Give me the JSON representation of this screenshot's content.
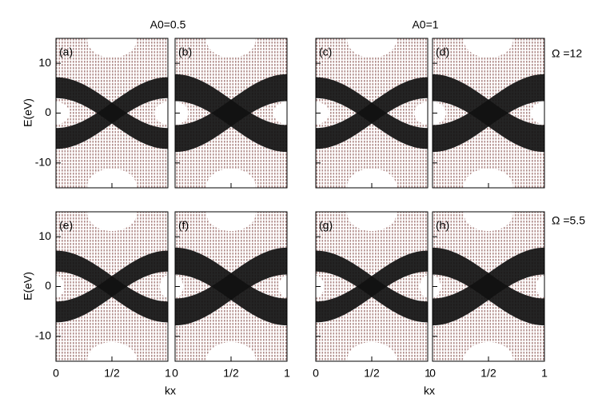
{
  "column_headers": [
    "A0=0.5",
    "A0=1"
  ],
  "row_labels": [
    "Ω =12",
    "Ω =5.5"
  ],
  "axis_labels": {
    "x": "kx",
    "y": "E(eV)"
  },
  "chart_data": [
    {
      "type": "band",
      "panel": "(a)",
      "row": 0,
      "col": 0,
      "xlim": [
        0,
        1
      ],
      "ylim": [
        -15,
        15
      ],
      "xticks": [
        0,
        0.5,
        1
      ],
      "yticks": [
        -10,
        0,
        10
      ],
      "xtick_labels": false,
      "ytick_labels": true
    },
    {
      "type": "band",
      "panel": "(b)",
      "row": 0,
      "col": 1,
      "xlim": [
        0,
        1
      ],
      "ylim": [
        -15,
        15
      ],
      "xticks": [
        0,
        0.5,
        1
      ],
      "yticks": [
        -10,
        0,
        10
      ],
      "xtick_labels": false,
      "ytick_labels": false
    },
    {
      "type": "band",
      "panel": "(c)",
      "row": 0,
      "col": 2,
      "xlim": [
        0,
        1
      ],
      "ylim": [
        -15,
        15
      ],
      "xticks": [
        0,
        0.5,
        1
      ],
      "yticks": [
        -10,
        0,
        10
      ],
      "xtick_labels": false,
      "ytick_labels": false
    },
    {
      "type": "band",
      "panel": "(d)",
      "row": 0,
      "col": 3,
      "xlim": [
        0,
        1
      ],
      "ylim": [
        -15,
        15
      ],
      "xticks": [
        0,
        0.5,
        1
      ],
      "yticks": [
        -10,
        0,
        10
      ],
      "xtick_labels": false,
      "ytick_labels": false
    },
    {
      "type": "band",
      "panel": "(e)",
      "row": 1,
      "col": 0,
      "xlim": [
        0,
        1
      ],
      "ylim": [
        -15,
        15
      ],
      "xticks": [
        0,
        {
          "value": 0.5,
          "label": "1/2"
        },
        1
      ],
      "yticks": [
        -10,
        0,
        10
      ],
      "xtick_labels": true,
      "ytick_labels": true
    },
    {
      "type": "band",
      "panel": "(f)",
      "row": 1,
      "col": 1,
      "xlim": [
        0,
        1
      ],
      "ylim": [
        -15,
        15
      ],
      "xticks": [
        0,
        {
          "value": 0.5,
          "label": "1/2"
        },
        1
      ],
      "yticks": [
        -10,
        0,
        10
      ],
      "xtick_labels": true,
      "ytick_labels": false
    },
    {
      "type": "band",
      "panel": "(g)",
      "row": 1,
      "col": 2,
      "xlim": [
        0,
        1
      ],
      "ylim": [
        -15,
        15
      ],
      "xticks": [
        0,
        {
          "value": 0.5,
          "label": "1/2"
        },
        1
      ],
      "yticks": [
        -10,
        0,
        10
      ],
      "xtick_labels": true,
      "ytick_labels": false
    },
    {
      "type": "band",
      "panel": "(h)",
      "row": 1,
      "col": 3,
      "xlim": [
        0,
        1
      ],
      "ylim": [
        -15,
        15
      ],
      "xticks": [
        0,
        {
          "value": 0.5,
          "label": "1/2"
        },
        1
      ],
      "yticks": [
        -10,
        0,
        10
      ],
      "xtick_labels": true,
      "ytick_labels": false
    }
  ]
}
